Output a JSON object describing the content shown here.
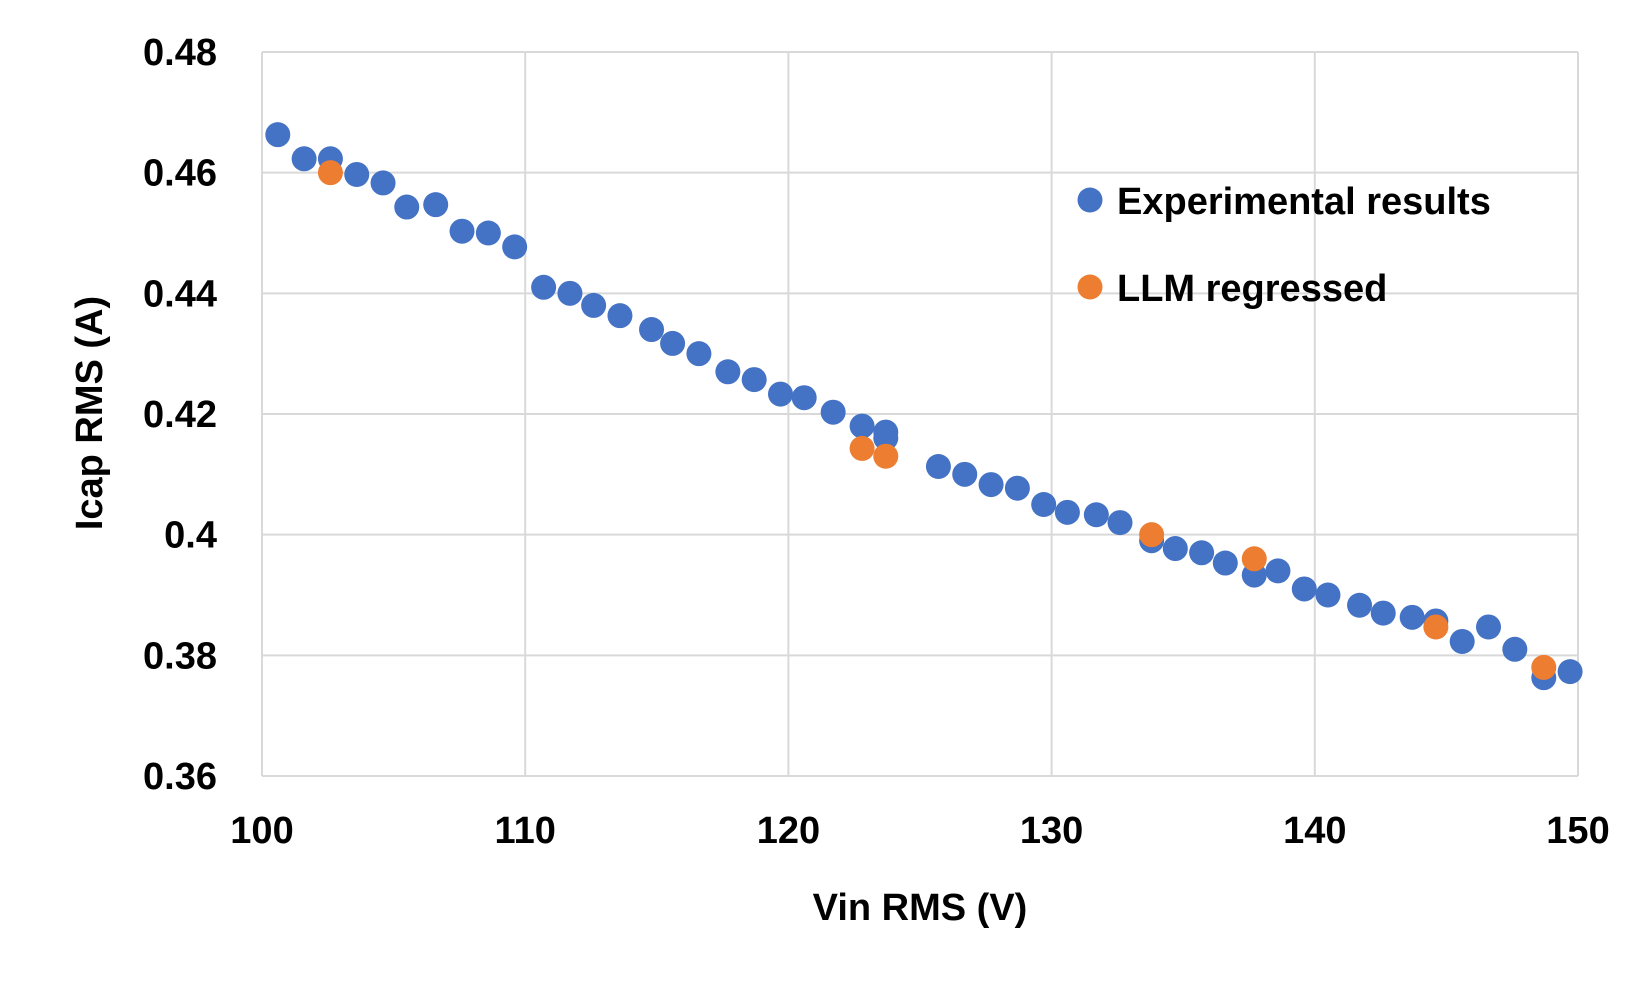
{
  "chart_data": {
    "type": "scatter",
    "title": "",
    "xlabel": "Vin RMS (V)",
    "ylabel": "Icap RMS (A)",
    "xlim": [
      100,
      150
    ],
    "ylim": [
      0.36,
      0.48
    ],
    "grid": true,
    "legend_position": "top-right",
    "x_ticks": [
      "100",
      "110",
      "120",
      "130",
      "140",
      "150"
    ],
    "y_ticks": [
      "0.36",
      "0.38",
      "0.4",
      "0.42",
      "0.44",
      "0.46",
      "0.48"
    ],
    "series": [
      {
        "name": "Experimental results",
        "color": "#4472C4",
        "points": [
          [
            100.6,
            0.4663
          ],
          [
            101.6,
            0.4623
          ],
          [
            102.6,
            0.4623
          ],
          [
            103.6,
            0.4597
          ],
          [
            104.6,
            0.4583
          ],
          [
            105.5,
            0.4543
          ],
          [
            106.6,
            0.4547
          ],
          [
            107.6,
            0.4503
          ],
          [
            108.6,
            0.45
          ],
          [
            109.6,
            0.4477
          ],
          [
            110.7,
            0.441
          ],
          [
            111.7,
            0.44
          ],
          [
            112.6,
            0.438
          ],
          [
            113.6,
            0.4363
          ],
          [
            114.8,
            0.434
          ],
          [
            115.6,
            0.4317
          ],
          [
            116.6,
            0.43
          ],
          [
            117.7,
            0.427
          ],
          [
            118.7,
            0.4257
          ],
          [
            119.7,
            0.4233
          ],
          [
            120.6,
            0.4227
          ],
          [
            121.7,
            0.4203
          ],
          [
            122.8,
            0.418
          ],
          [
            123.7,
            0.417
          ],
          [
            123.7,
            0.416
          ],
          [
            125.7,
            0.4113
          ],
          [
            126.7,
            0.41
          ],
          [
            127.7,
            0.4083
          ],
          [
            128.7,
            0.4077
          ],
          [
            129.7,
            0.405
          ],
          [
            130.6,
            0.4037
          ],
          [
            131.7,
            0.4033
          ],
          [
            132.6,
            0.402
          ],
          [
            133.8,
            0.399
          ],
          [
            134.7,
            0.3977
          ],
          [
            135.7,
            0.397
          ],
          [
            136.6,
            0.3953
          ],
          [
            137.7,
            0.3933
          ],
          [
            138.6,
            0.394
          ],
          [
            139.6,
            0.391
          ],
          [
            140.5,
            0.39
          ],
          [
            141.7,
            0.3883
          ],
          [
            142.6,
            0.387
          ],
          [
            143.7,
            0.3863
          ],
          [
            144.6,
            0.3857
          ],
          [
            145.6,
            0.3823
          ],
          [
            146.6,
            0.3847
          ],
          [
            147.6,
            0.381
          ],
          [
            148.7,
            0.3763
          ],
          [
            149.7,
            0.3773
          ]
        ]
      },
      {
        "name": "LLM regressed",
        "color": "#ED7D31",
        "points": [
          [
            102.6,
            0.46
          ],
          [
            122.8,
            0.4143
          ],
          [
            123.7,
            0.413
          ],
          [
            133.8,
            0.4
          ],
          [
            137.7,
            0.396
          ],
          [
            144.6,
            0.3847
          ],
          [
            148.7,
            0.378
          ]
        ]
      }
    ]
  }
}
